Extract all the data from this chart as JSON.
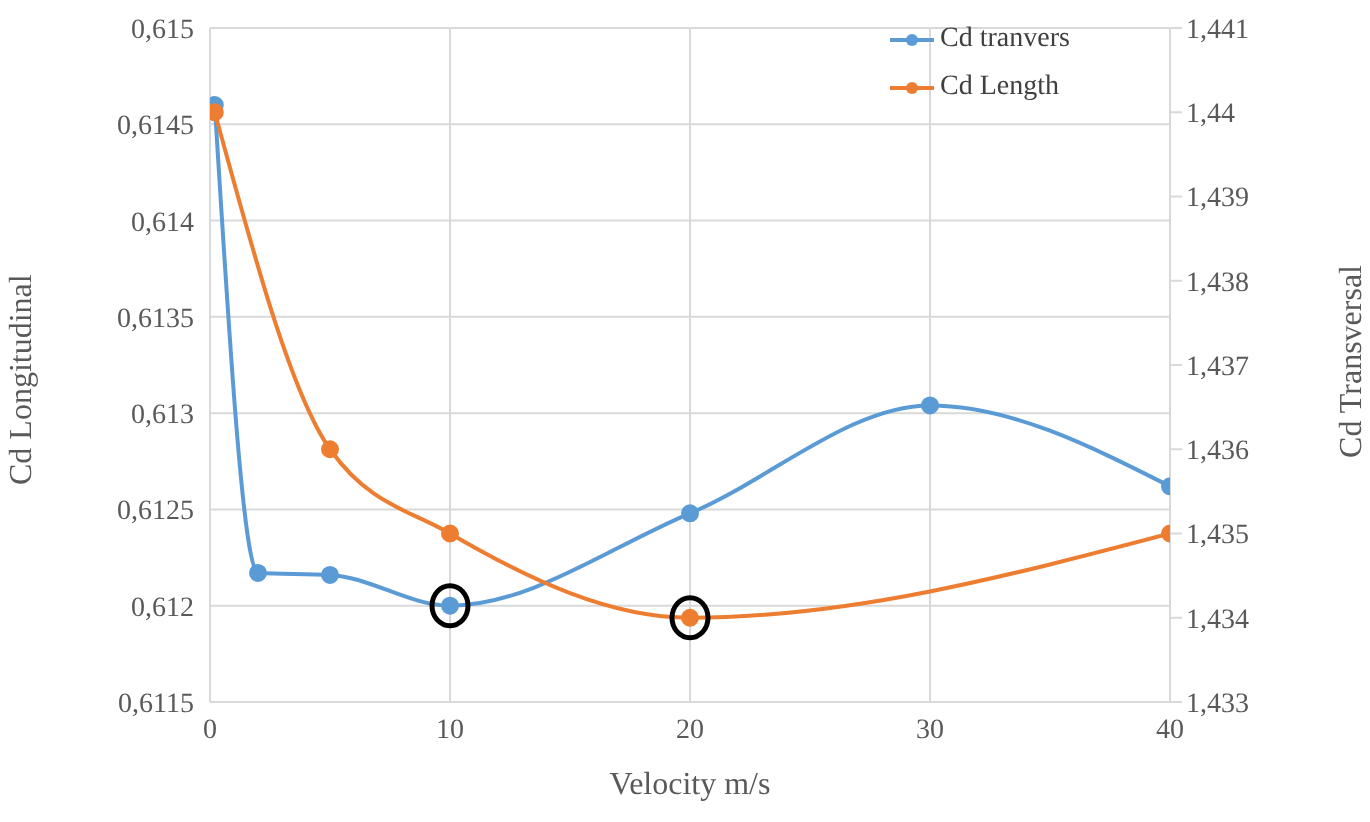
{
  "chart_data": {
    "type": "line",
    "xlabel": "Velocity m/s",
    "ylabel": "Cd Longitudinal",
    "y2label": "Cd Transversal",
    "series": [
      {
        "name": "Cd tranvers",
        "color": "#5b9bd5",
        "x": [
          0.2,
          2,
          5,
          10,
          20,
          30,
          40
        ],
        "values": [
          0.6146,
          0.61217,
          0.61216,
          0.612,
          0.61248,
          0.61304,
          0.61262
        ]
      },
      {
        "name": "Cd Length",
        "color": "#ed7d31",
        "axis": "y2",
        "x": [
          0.2,
          5,
          10,
          20,
          40
        ],
        "values": [
          1.44,
          1.436,
          1.435,
          1.434,
          1.435
        ]
      }
    ],
    "xlim": [
      0,
      40
    ],
    "xticks": [
      0,
      10,
      20,
      30,
      40
    ],
    "ylim": [
      0.6115,
      0.615
    ],
    "yticks": [
      {
        "value": 0.6115,
        "label": "0,6115"
      },
      {
        "value": 0.612,
        "label": "0,612"
      },
      {
        "value": 0.6125,
        "label": "0,6125"
      },
      {
        "value": 0.613,
        "label": "0,613"
      },
      {
        "value": 0.6135,
        "label": "0,6135"
      },
      {
        "value": 0.614,
        "label": "0,614"
      },
      {
        "value": 0.6145,
        "label": "0,6145"
      },
      {
        "value": 0.615,
        "label": "0,615"
      }
    ],
    "y2lim": [
      1.433,
      1.441
    ],
    "y2ticks": [
      {
        "value": 1.433,
        "label": "1,433"
      },
      {
        "value": 1.434,
        "label": "1,434"
      },
      {
        "value": 1.435,
        "label": "1,435"
      },
      {
        "value": 1.436,
        "label": "1,436"
      },
      {
        "value": 1.437,
        "label": "1,437"
      },
      {
        "value": 1.438,
        "label": "1,438"
      },
      {
        "value": 1.439,
        "label": "1,439"
      },
      {
        "value": 1.44,
        "label": "1,44"
      },
      {
        "value": 1.441,
        "label": "1,441"
      }
    ],
    "grid": true,
    "legend": "top right",
    "marker": "circle",
    "line_style": "solid"
  }
}
